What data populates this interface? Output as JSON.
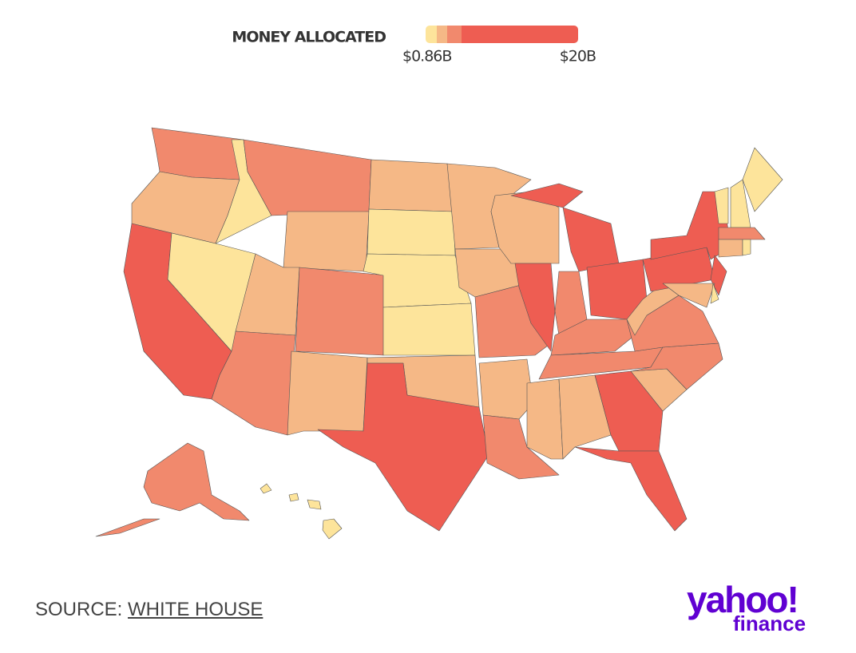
{
  "legend": {
    "title": "MONEY ALLOCATED",
    "colors": [
      "#fde49b",
      "#f5b886",
      "#f1896d",
      "#ee5d52"
    ],
    "min": {
      "value": 0.86,
      "label": "$0.86B"
    },
    "max": {
      "value": 20,
      "label": "$20B"
    }
  },
  "source": {
    "prefix": "SOURCE:",
    "link": "WHITE HOUSE"
  },
  "logo": {
    "brand": "yahoo!",
    "product": "finance"
  }
}
